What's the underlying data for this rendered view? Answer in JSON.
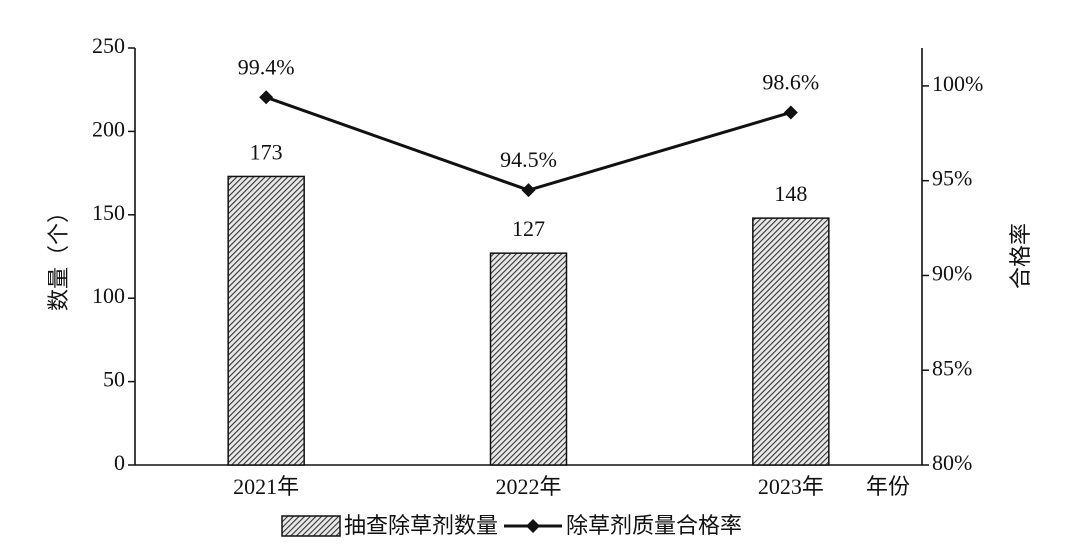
{
  "chart_data": {
    "type": "bar",
    "categories": [
      "2021年",
      "2022年",
      "2023年"
    ],
    "x_label": "年份",
    "y_label": "数量（个）",
    "y2_label": "合格率",
    "ylim": [
      0,
      250
    ],
    "yticks": [
      0,
      50,
      100,
      150,
      200,
      250
    ],
    "y2lim": [
      80,
      102
    ],
    "y2ticks": [
      {
        "value": 80,
        "label": "80%"
      },
      {
        "value": 85,
        "label": "85%"
      },
      {
        "value": 90,
        "label": "90%"
      },
      {
        "value": 95,
        "label": "95%"
      },
      {
        "value": 100,
        "label": "100%"
      }
    ],
    "series": [
      {
        "name": "抽查除草剂数量",
        "type": "bar",
        "color": "#444444",
        "values": [
          173,
          127,
          148
        ]
      },
      {
        "name": "除草剂质量合格率",
        "type": "line",
        "axis": "y2",
        "color": "#111111",
        "values": [
          99.4,
          94.5,
          98.6
        ],
        "value_labels": [
          "99.4%",
          "94.5%",
          "98.6%"
        ]
      }
    ]
  }
}
